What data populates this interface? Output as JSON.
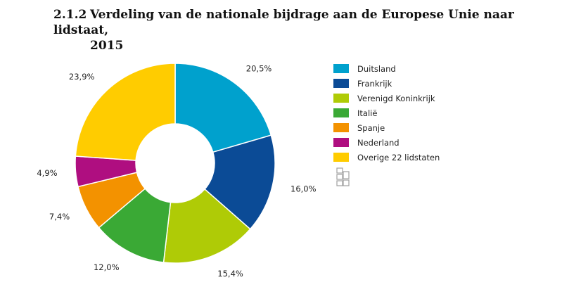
{
  "title": {
    "number": "2.1.2",
    "line1": "Verdeling van de nationale bijdrage aan de Europese Unie naar lidstaat,",
    "line2": "2015"
  },
  "chart_data": {
    "type": "pie",
    "donut": true,
    "title": "Verdeling van de nationale bijdrage aan de Europese Unie naar lidstaat, 2015",
    "categories": [
      "Duitsland",
      "Frankrijk",
      "Verenigd Koninkrijk",
      "Italië",
      "Spanje",
      "Nederland",
      "Overige 22 lidstaten"
    ],
    "values": [
      20.5,
      16.0,
      15.4,
      12.0,
      7.4,
      4.9,
      23.9
    ],
    "value_labels": [
      "20,5%",
      "16,0%",
      "15,4%",
      "12,0%",
      "7,4%",
      "4,9%",
      "23,9%"
    ],
    "colors": [
      "#00a1cd",
      "#0b4b96",
      "#afcb06",
      "#3aa935",
      "#f39200",
      "#af0e80",
      "#ffcc00"
    ],
    "legend_position": "right",
    "start_angle": "12 o'clock, clockwise"
  },
  "logo": {
    "icon": "cbs-logo-icon"
  }
}
